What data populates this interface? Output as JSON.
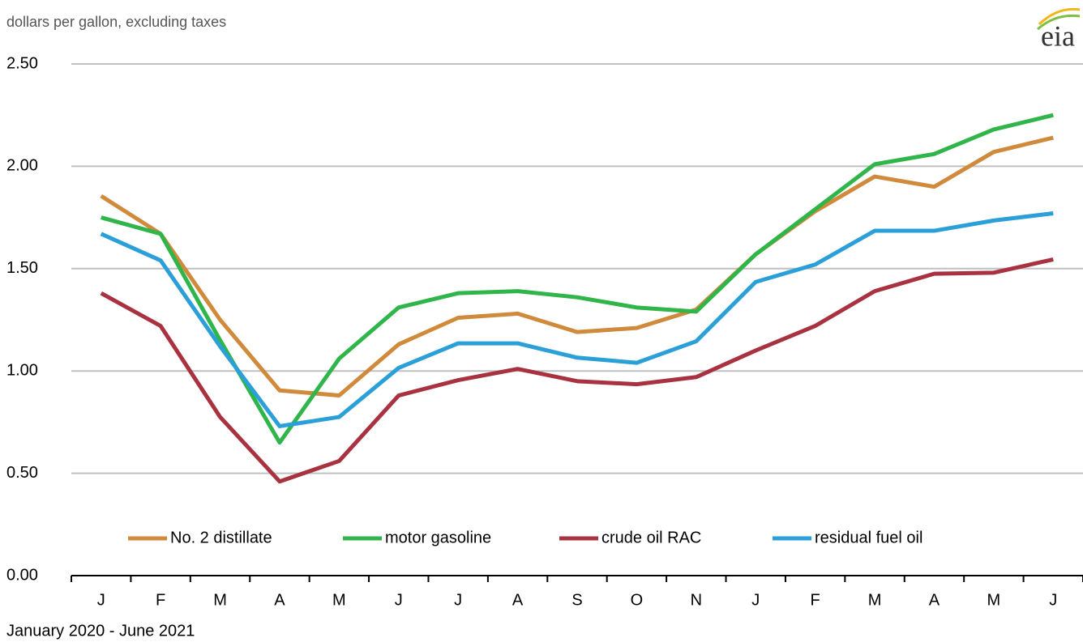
{
  "chart_data": {
    "type": "line",
    "subtitle": "dollars per gallon, excluding taxes",
    "x_label": "January 2020 - June 2021",
    "logo": "eia",
    "categories": [
      "J",
      "F",
      "M",
      "A",
      "M",
      "J",
      "J",
      "A",
      "S",
      "O",
      "N",
      "J",
      "F",
      "M",
      "A",
      "M",
      "J"
    ],
    "series": [
      {
        "name": "No. 2 distillate",
        "color": "#d08a3c",
        "values": [
          1.855,
          1.67,
          1.25,
          0.905,
          0.88,
          1.13,
          1.26,
          1.28,
          1.19,
          1.21,
          1.3,
          1.57,
          1.78,
          1.95,
          1.9,
          2.07,
          2.14
        ]
      },
      {
        "name": "motor gasoline",
        "color": "#2fb54a",
        "values": [
          1.75,
          1.67,
          1.15,
          0.65,
          1.06,
          1.31,
          1.38,
          1.39,
          1.36,
          1.31,
          1.29,
          1.57,
          1.79,
          2.01,
          2.06,
          2.18,
          2.25
        ]
      },
      {
        "name": "crude oil RAC",
        "color": "#a83240",
        "values": [
          1.38,
          1.22,
          0.775,
          0.46,
          0.56,
          0.88,
          0.955,
          1.01,
          0.95,
          0.935,
          0.97,
          1.1,
          1.22,
          1.39,
          1.475,
          1.48,
          1.545
        ]
      },
      {
        "name": "residual fuel oil",
        "color": "#2a9fd8",
        "values": [
          1.67,
          1.54,
          1.12,
          0.73,
          0.775,
          1.015,
          1.135,
          1.135,
          1.065,
          1.04,
          1.145,
          1.435,
          1.52,
          1.685,
          1.685,
          1.735,
          1.77
        ]
      }
    ],
    "ylim": [
      0,
      2.5
    ],
    "yticks": [
      {
        "value": 0,
        "label": "0.00"
      },
      {
        "value": 0.5,
        "label": "0.50"
      },
      {
        "value": 1,
        "label": "1.00"
      },
      {
        "value": 1.5,
        "label": "1.50"
      },
      {
        "value": 2,
        "label": "2.00"
      },
      {
        "value": 2.5,
        "label": "2.50"
      }
    ],
    "grid": true,
    "legend": "lower center"
  }
}
